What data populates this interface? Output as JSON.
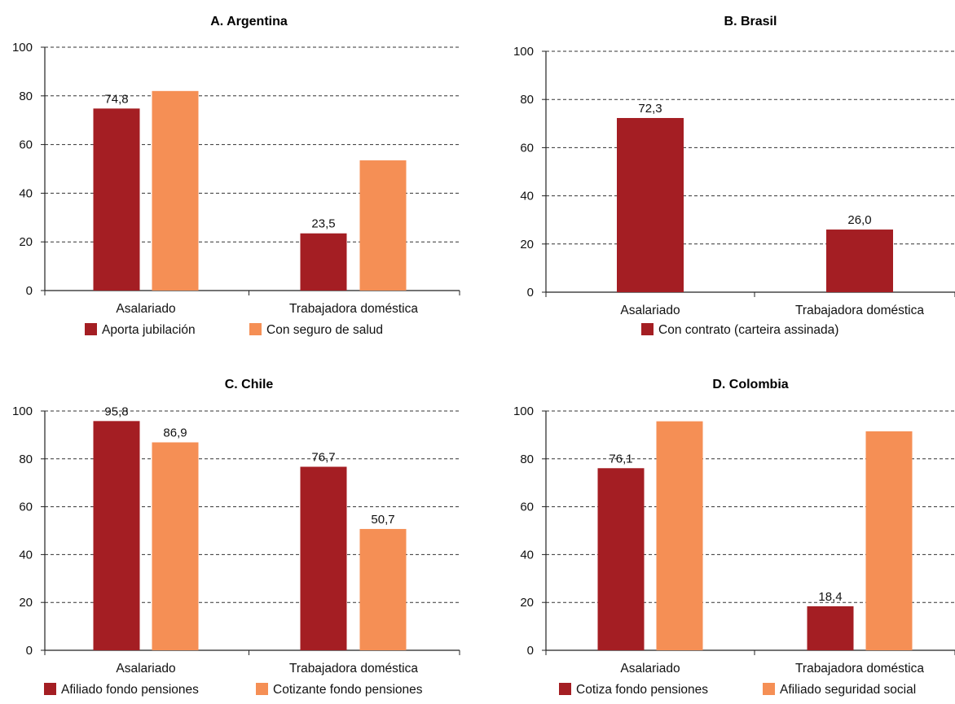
{
  "colors": {
    "dark": "#a41e23",
    "light": "#f58f55"
  },
  "chart_data": [
    {
      "type": "bar",
      "title": "A. Argentina",
      "categories": [
        "Asalariado",
        "Trabajadora doméstica"
      ],
      "ylim": [
        0,
        100
      ],
      "yticks": [
        "0",
        "20",
        "40",
        "60",
        "80",
        "100"
      ],
      "grid": true,
      "legend_position": "bottom",
      "series": [
        {
          "name": "Aporta jubilación",
          "values": [
            74.8,
            23.5
          ],
          "labels": [
            "74,8",
            "23,5"
          ],
          "color": "#a41e23"
        },
        {
          "name": "Con seguro de salud",
          "values": [
            82,
            53.5
          ],
          "labels": [
            "",
            ""
          ],
          "color": "#f58f55"
        }
      ]
    },
    {
      "type": "bar",
      "title": "B. Brasil",
      "categories": [
        "Asalariado",
        "Trabajadora doméstica"
      ],
      "ylim": [
        0,
        100
      ],
      "yticks": [
        "0",
        "20",
        "40",
        "60",
        "80",
        "100"
      ],
      "grid": true,
      "legend_position": "bottom",
      "series": [
        {
          "name": "Con contrato (carteira assinada)",
          "values": [
            72.3,
            26.0
          ],
          "labels": [
            "72,3",
            "26,0"
          ],
          "color": "#a41e23"
        }
      ]
    },
    {
      "type": "bar",
      "title": "C. Chile",
      "categories": [
        "Asalariado",
        "Trabajadora doméstica"
      ],
      "ylim": [
        0,
        100
      ],
      "yticks": [
        "0",
        "20",
        "40",
        "60",
        "80",
        "100"
      ],
      "grid": true,
      "legend_position": "bottom",
      "series": [
        {
          "name": "Afiliado fondo pensiones",
          "values": [
            95.8,
            76.7
          ],
          "labels": [
            "95,8",
            "76,7"
          ],
          "color": "#a41e23"
        },
        {
          "name": "Cotizante fondo pensiones",
          "values": [
            86.9,
            50.7
          ],
          "labels": [
            "86,9",
            "50,7"
          ],
          "color": "#f58f55"
        }
      ]
    },
    {
      "type": "bar",
      "title": "D. Colombia",
      "categories": [
        "Asalariado",
        "Trabajadora doméstica"
      ],
      "ylim": [
        0,
        100
      ],
      "yticks": [
        "0",
        "20",
        "40",
        "60",
        "80",
        "100"
      ],
      "grid": true,
      "legend_position": "bottom",
      "series": [
        {
          "name": "Cotiza fondo pensiones",
          "values": [
            76.1,
            18.4
          ],
          "labels": [
            "76,1",
            "18,4"
          ],
          "color": "#a41e23"
        },
        {
          "name": "Afiliado seguridad social",
          "values": [
            95.7,
            91.5
          ],
          "labels": [
            "",
            ""
          ],
          "color": "#f58f55"
        }
      ]
    }
  ]
}
